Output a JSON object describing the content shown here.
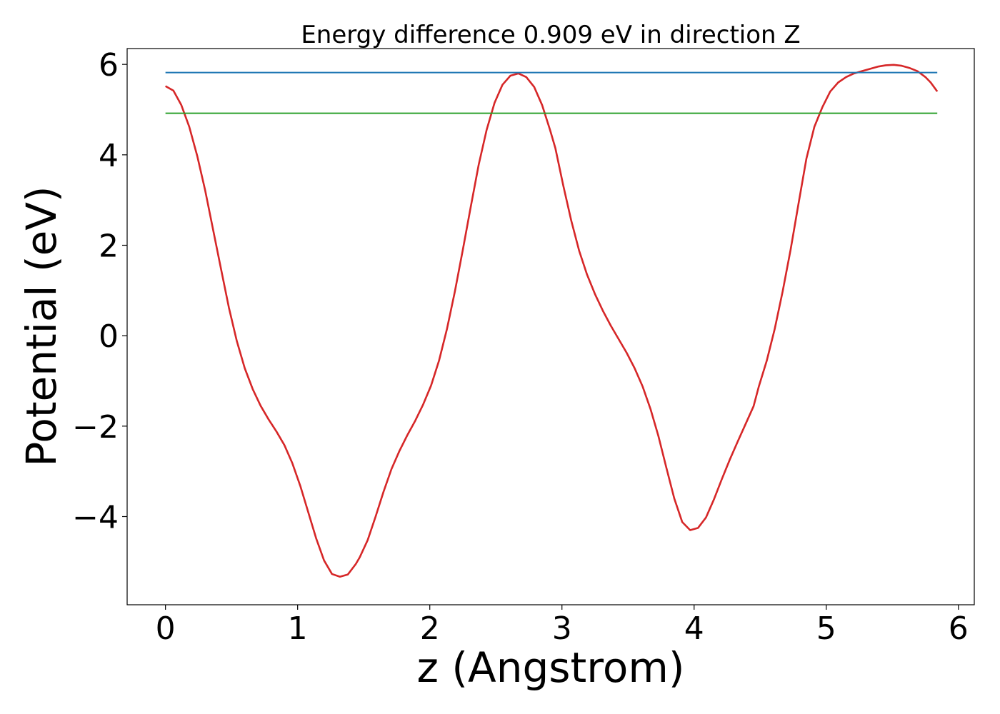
{
  "chart_data": {
    "type": "line",
    "title": "Energy difference 0.909 eV in direction Z",
    "xlabel": "z (Angstrom)",
    "ylabel": "Potential (eV)",
    "xlim": [
      -0.29,
      6.12
    ],
    "ylim": [
      -5.95,
      6.35
    ],
    "xticks": [
      0,
      1,
      2,
      3,
      4,
      5,
      6
    ],
    "yticks": [
      -4,
      -2,
      0,
      2,
      4,
      6
    ],
    "xtick_labels": [
      "0",
      "1",
      "2",
      "3",
      "4",
      "5",
      "6"
    ],
    "ytick_labels": [
      "−4",
      "−2",
      "0",
      "2",
      "4",
      "6"
    ],
    "grid": false,
    "series": [
      {
        "color": "#d62728",
        "x": [
          0,
          0.06,
          0.12,
          0.18,
          0.24,
          0.3,
          0.36,
          0.42,
          0.48,
          0.54,
          0.6,
          0.66,
          0.72,
          0.78,
          0.84,
          0.9,
          0.96,
          1.02,
          1.08,
          1.14,
          1.2,
          1.26,
          1.32,
          1.38,
          1.44,
          1.47,
          1.53,
          1.59,
          1.65,
          1.71,
          1.77,
          1.83,
          1.89,
          1.95,
          2.01,
          2.07,
          2.13,
          2.19,
          2.25,
          2.31,
          2.37,
          2.43,
          2.49,
          2.55,
          2.61,
          2.67,
          2.73,
          2.79,
          2.85,
          2.91,
          2.95,
          3.01,
          3.07,
          3.13,
          3.19,
          3.25,
          3.31,
          3.37,
          3.43,
          3.49,
          3.55,
          3.61,
          3.67,
          3.73,
          3.79,
          3.85,
          3.91,
          3.97,
          4.03,
          4.09,
          4.15,
          4.21,
          4.27,
          4.33,
          4.39,
          4.45,
          4.49,
          4.55,
          4.61,
          4.67,
          4.73,
          4.79,
          4.85,
          4.91,
          4.97,
          5.03,
          5.09,
          5.15,
          5.21,
          5.27,
          5.33,
          5.39,
          5.45,
          5.51,
          5.57,
          5.63,
          5.69,
          5.75,
          5.79,
          5.84
        ],
        "y": [
          5.52,
          5.42,
          5.1,
          4.62,
          3.98,
          3.22,
          2.35,
          1.48,
          0.62,
          -0.12,
          -0.72,
          -1.18,
          -1.55,
          -1.85,
          -2.12,
          -2.42,
          -2.82,
          -3.32,
          -3.9,
          -4.48,
          -4.97,
          -5.27,
          -5.33,
          -5.28,
          -5.05,
          -4.9,
          -4.52,
          -4.0,
          -3.45,
          -2.95,
          -2.55,
          -2.2,
          -1.88,
          -1.52,
          -1.1,
          -0.55,
          0.15,
          0.98,
          1.9,
          2.85,
          3.78,
          4.55,
          5.15,
          5.55,
          5.75,
          5.8,
          5.72,
          5.5,
          5.1,
          4.55,
          4.15,
          3.32,
          2.55,
          1.88,
          1.35,
          0.92,
          0.55,
          0.22,
          -0.08,
          -0.38,
          -0.72,
          -1.12,
          -1.62,
          -2.22,
          -2.92,
          -3.6,
          -4.12,
          -4.3,
          -4.25,
          -4.02,
          -3.62,
          -3.17,
          -2.74,
          -2.34,
          -1.95,
          -1.56,
          -1.12,
          -0.55,
          0.15,
          0.98,
          1.9,
          2.92,
          3.92,
          4.62,
          5.05,
          5.4,
          5.6,
          5.72,
          5.8,
          5.85,
          5.9,
          5.95,
          5.98,
          5.99,
          5.97,
          5.92,
          5.85,
          5.72,
          5.6,
          5.4
        ]
      },
      {
        "color": "#1f77b4",
        "x": [
          0,
          5.84
        ],
        "y": [
          5.82,
          5.82
        ]
      },
      {
        "color": "#2ca02c",
        "x": [
          0,
          5.84
        ],
        "y": [
          4.92,
          4.92
        ]
      }
    ]
  }
}
